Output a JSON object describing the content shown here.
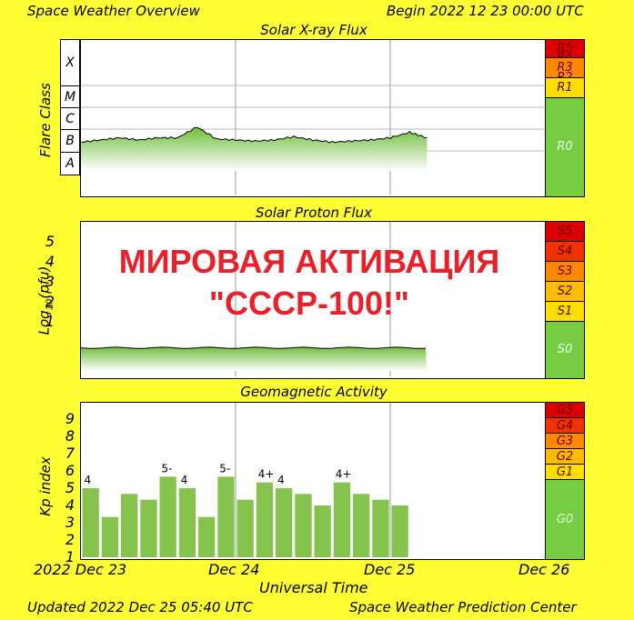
{
  "header": {
    "left": "Space Weather Overview",
    "right": "Begin 2022 12 23 00:00 UTC"
  },
  "footer": {
    "left": "Updated 2022 Dec 25 05:40 UTC",
    "right": "Space Weather Prediction Center"
  },
  "overlay": {
    "line1": "МИРОВАЯ АКТИВАЦИЯ",
    "line2": "\"СССР-100!\""
  },
  "colors": {
    "background": "#ffff33",
    "bar_green": "#86c34e",
    "level_red": "#dd0000",
    "level_redorange": "#ee3300",
    "level_orange": "#ff8800",
    "level_yellow": "#ffdd00",
    "level_green": "#77cc44"
  },
  "xray": {
    "title": "Solar X-ray Flux",
    "ylabel": "Flare Class",
    "classes": [
      "X",
      "M",
      "C",
      "B",
      "A"
    ],
    "scale": [
      {
        "label": "R5",
        "color": "#dd0000"
      },
      {
        "label": "R4",
        "color": "#ee3300"
      },
      {
        "label": "R3",
        "color": "#ff8800"
      },
      {
        "label": "R2",
        "color": "#ffbb00"
      },
      {
        "label": "R1",
        "color": "#ffdd00"
      },
      {
        "label": "R0",
        "color": "#77cc44"
      }
    ]
  },
  "proton": {
    "title": "Solar Proton Flux",
    "ylabel": "Log10(pfu)",
    "ticks": [
      "5",
      "4",
      "3",
      "2",
      "1"
    ],
    "scale": [
      {
        "label": "S5",
        "color": "#dd0000"
      },
      {
        "label": "S4",
        "color": "#ee3300"
      },
      {
        "label": "S3",
        "color": "#ff8800"
      },
      {
        "label": "S2",
        "color": "#ffbb00"
      },
      {
        "label": "S1",
        "color": "#ffdd00"
      },
      {
        "label": "S0",
        "color": "#77cc44"
      }
    ]
  },
  "geomag": {
    "title": "Geomagnetic Activity",
    "ylabel": "Kp index",
    "ticks": [
      "9",
      "8",
      "7",
      "6",
      "5",
      "4",
      "3",
      "2",
      "1"
    ],
    "scale": [
      {
        "label": "G5",
        "color": "#dd0000"
      },
      {
        "label": "G4",
        "color": "#ee3300"
      },
      {
        "label": "G3",
        "color": "#ff8800"
      },
      {
        "label": "G2",
        "color": "#ffbb00"
      },
      {
        "label": "G1",
        "color": "#ffdd00"
      },
      {
        "label": "G0",
        "color": "#77cc44"
      }
    ]
  },
  "xaxis": {
    "labels": [
      "2022 Dec 23",
      "Dec 24",
      "Dec 25",
      "Dec 26"
    ],
    "title": "Universal Time"
  },
  "chart_data": [
    {
      "type": "line",
      "title": "Solar X-ray Flux",
      "ylabel": "Flare Class",
      "y_categories": [
        "A",
        "B",
        "C",
        "M",
        "X"
      ],
      "note_series": "long-wavelength flux hovering in B class, data from Dec 23 00:00 to Dec 25 05:40",
      "x": [
        0,
        3,
        6,
        9,
        12,
        15,
        18,
        21,
        24,
        27,
        30,
        33,
        36,
        39,
        42,
        45,
        48,
        51,
        53.7
      ],
      "values_class": [
        2.4,
        2.5,
        2.6,
        2.5,
        2.6,
        2.6,
        3.1,
        2.55,
        2.5,
        2.45,
        2.5,
        2.65,
        2.5,
        2.4,
        2.45,
        2.5,
        2.6,
        2.85,
        2.6
      ]
    },
    {
      "type": "line",
      "title": "Solar Proton Flux",
      "ylabel": "Log10(pfu)",
      "ylim": [
        -1,
        6
      ],
      "x": [
        0,
        6,
        12,
        18,
        24,
        30,
        36,
        42,
        48,
        53.7
      ],
      "values": [
        -0.3,
        -0.3,
        -0.3,
        -0.3,
        -0.3,
        -0.3,
        -0.3,
        -0.3,
        -0.3,
        -0.3
      ]
    },
    {
      "type": "bar",
      "title": "Geomagnetic Activity",
      "ylabel": "Kp index",
      "ylim": [
        0,
        9
      ],
      "categories": [
        "Dec 23 00",
        "Dec 23 03",
        "Dec 23 06",
        "Dec 23 09",
        "Dec 23 12",
        "Dec 23 15",
        "Dec 23 18",
        "Dec 23 21",
        "Dec 24 00",
        "Dec 24 03",
        "Dec 24 06",
        "Dec 24 09",
        "Dec 24 12",
        "Dec 24 15",
        "Dec 24 18",
        "Dec 24 21",
        "Dec 25 00",
        "Dec 25 03"
      ],
      "values": [
        4.0,
        2.33,
        3.67,
        3.33,
        4.67,
        4.0,
        2.33,
        4.67,
        3.33,
        4.33,
        4.0,
        3.67,
        3.0,
        4.33,
        3.67,
        3.33,
        3.0,
        0
      ],
      "data_labels": [
        "4",
        "",
        "",
        "",
        "5-",
        "4",
        "",
        "5-",
        "",
        "4+",
        "4",
        "",
        "",
        "4+",
        "",
        "",
        "",
        ""
      ]
    }
  ]
}
